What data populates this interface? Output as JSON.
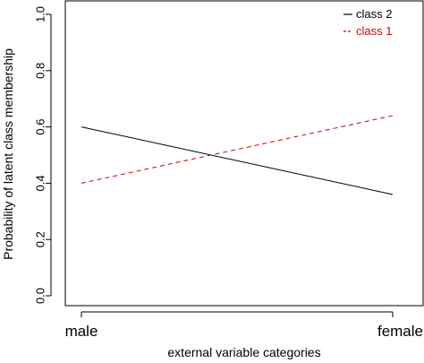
{
  "chart_data": {
    "type": "line",
    "title": "",
    "xlabel": "external variable categories",
    "ylabel": "Probability of latent class membership",
    "categories": [
      "male",
      "female"
    ],
    "ylim": [
      0.0,
      1.0
    ],
    "yticks": [
      "0.0",
      "0.2",
      "0.4",
      "0.6",
      "0.8",
      "1.0"
    ],
    "grid": false,
    "legend_position": "top-right",
    "series": [
      {
        "name": "class 2",
        "values": [
          0.6,
          0.36
        ],
        "color": "#000000",
        "dash": "solid"
      },
      {
        "name": "class 1",
        "values": [
          0.4,
          0.64
        ],
        "color": "#cc0000",
        "dash": "dashed"
      }
    ]
  }
}
